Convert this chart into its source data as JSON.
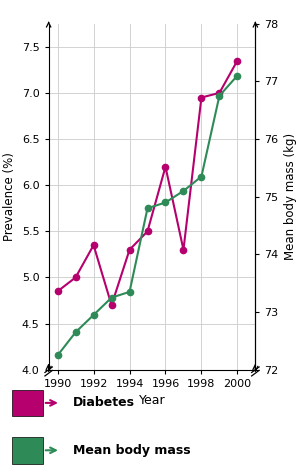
{
  "years": [
    1990,
    1991,
    1992,
    1993,
    1994,
    1995,
    1996,
    1997,
    1998,
    1999,
    2000
  ],
  "diabetes": [
    4.85,
    5.0,
    5.35,
    4.7,
    5.3,
    5.5,
    6.2,
    5.3,
    6.95,
    7.0,
    7.35
  ],
  "bm_kg": [
    72.25,
    72.65,
    72.95,
    73.25,
    73.35,
    74.8,
    74.9,
    75.1,
    75.35,
    76.75,
    77.1
  ],
  "diabetes_color": "#b5006e",
  "body_mass_color": "#2e8b57",
  "grid_color": "#cccccc",
  "bg_color": "#ffffff",
  "left_ylim": [
    4.0,
    7.75
  ],
  "left_yticks": [
    4.0,
    4.5,
    5.0,
    5.5,
    6.0,
    6.5,
    7.0,
    7.5
  ],
  "right_ylim": [
    72,
    78
  ],
  "right_yticks": [
    72,
    73,
    74,
    75,
    76,
    77,
    78
  ],
  "xticks": [
    1990,
    1992,
    1994,
    1996,
    1998,
    2000
  ],
  "xlabel": "Year",
  "ylabel_left": "Prevalence (%)",
  "ylabel_right": "Mean body mass (kg)",
  "legend_diabetes": "Diabetes",
  "legend_body_mass": "Mean body mass",
  "legend_bg": "#dcdce8"
}
